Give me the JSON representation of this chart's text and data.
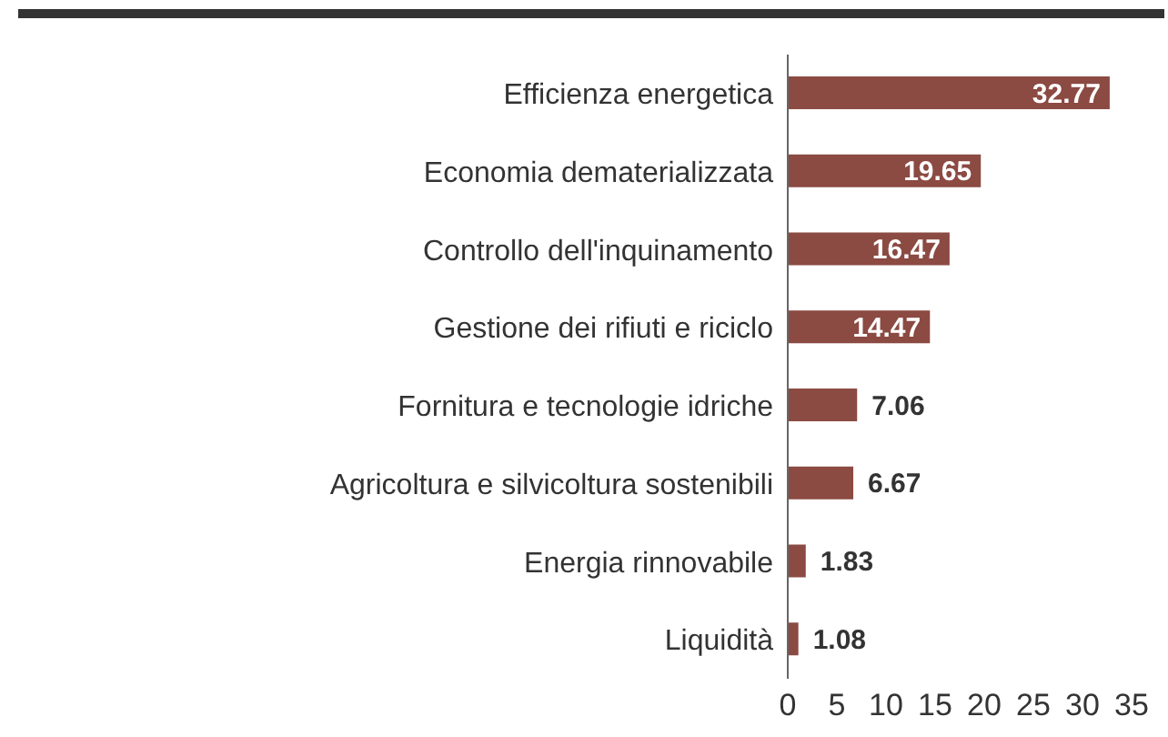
{
  "chart_data": {
    "type": "bar",
    "orientation": "horizontal",
    "categories": [
      "Efficienza energetica",
      "Economia dematerializzata",
      "Controllo dell'inquinamento",
      "Gestione dei rifiuti e riciclo",
      "Fornitura e tecnologie idriche",
      "Agricoltura e silvicoltura sostenibili",
      "Energia rinnovabile",
      "Liquidità"
    ],
    "values": [
      32.77,
      19.65,
      16.47,
      14.47,
      7.06,
      6.67,
      1.83,
      1.08
    ],
    "color": "#8b4a42",
    "xlim": [
      0,
      35
    ],
    "xticks": [
      0,
      5,
      10,
      15,
      20,
      25,
      30,
      35
    ],
    "grid": false,
    "legend": false,
    "data_labels": true
  }
}
